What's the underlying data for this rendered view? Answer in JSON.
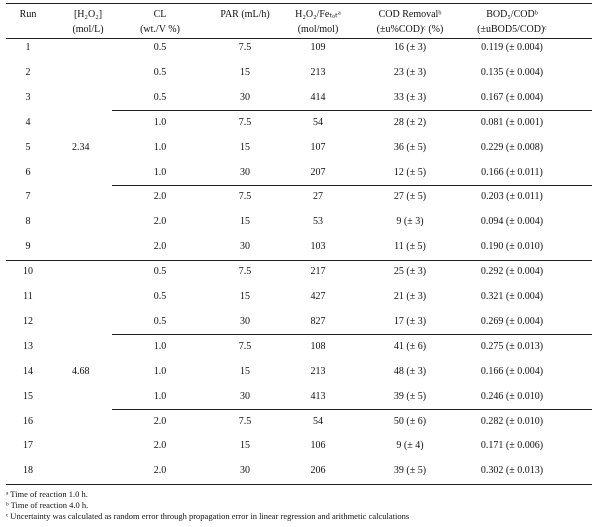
{
  "table": {
    "header": [
      [
        "Run"
      ],
      [
        "[H₂O₂]",
        "(mol/L)"
      ],
      [
        "CL",
        "(wt./V %)"
      ],
      [
        "PAR (mL/h)"
      ],
      [
        "H₂O₂/Feₜₒₜᵃ",
        "(mol/mol)"
      ],
      [
        "COD Removalᵇ",
        "(±u%COD)ᶜ (%)"
      ],
      [
        "BOD₅/CODᵇ",
        "(±uBOD5/COD)ᶜ"
      ]
    ],
    "groups": [
      {
        "label": "2.34",
        "rows": [
          [
            "1",
            "0.5",
            "7.5",
            "109",
            "16 (± 3)",
            "0.119 (± 0.004)"
          ],
          [
            "2",
            "0.5",
            "15",
            "213",
            "23 (± 3)",
            "0.135 (± 0.004)"
          ],
          [
            "3",
            "0.5",
            "30",
            "414",
            "33 (± 3)",
            "0.167 (± 0.004)"
          ],
          [
            "4",
            "1.0",
            "7.5",
            "54",
            "28 (± 2)",
            "0.081 (± 0.001)"
          ],
          [
            "5",
            "1.0",
            "15",
            "107",
            "36 (± 5)",
            "0.229 (± 0.008)"
          ],
          [
            "6",
            "1.0",
            "30",
            "207",
            "12 (± 5)",
            "0.166 (± 0.011)"
          ],
          [
            "7",
            "2.0",
            "7.5",
            "27",
            "27 (± 5)",
            "0.203 (± 0.011)"
          ],
          [
            "8",
            "2.0",
            "15",
            "53",
            "9 (± 3)",
            "0.094 (± 0.004)"
          ],
          [
            "9",
            "2.0",
            "30",
            "103",
            "11 (± 5)",
            "0.190 (± 0.010)"
          ]
        ]
      },
      {
        "label": "4.68",
        "rows": [
          [
            "10",
            "0.5",
            "7.5",
            "217",
            "25 (± 3)",
            "0.292 (± 0.004)"
          ],
          [
            "11",
            "0.5",
            "15",
            "427",
            "21 (± 3)",
            "0.321 (± 0.004)"
          ],
          [
            "12",
            "0.5",
            "30",
            "827",
            "17 (± 3)",
            "0.269 (± 0.004)"
          ],
          [
            "13",
            "1.0",
            "7.5",
            "108",
            "41 (± 6)",
            "0.275 (± 0.013)"
          ],
          [
            "14",
            "1.0",
            "15",
            "213",
            "48 (± 3)",
            "0.166 (± 0.004)"
          ],
          [
            "15",
            "1.0",
            "30",
            "413",
            "39 (± 5)",
            "0.246 (± 0.010)"
          ],
          [
            "16",
            "2.0",
            "7.5",
            "54",
            "50 (± 6)",
            "0.282 (± 0.010)"
          ],
          [
            "17",
            "2.0",
            "15",
            "106",
            "9 (± 4)",
            "0.171 (± 0.006)"
          ],
          [
            "18",
            "2.0",
            "30",
            "206",
            "39 (± 5)",
            "0.302 (± 0.013)"
          ]
        ]
      }
    ],
    "footnotes": [
      "ᵃ Time of reaction 1.0 h.",
      "ᵇ Time of reaction 4.0 h.",
      "ᶜ Uncertainty was calculated as random error through propagation error in linear regression and arithmetic calculations"
    ]
  }
}
